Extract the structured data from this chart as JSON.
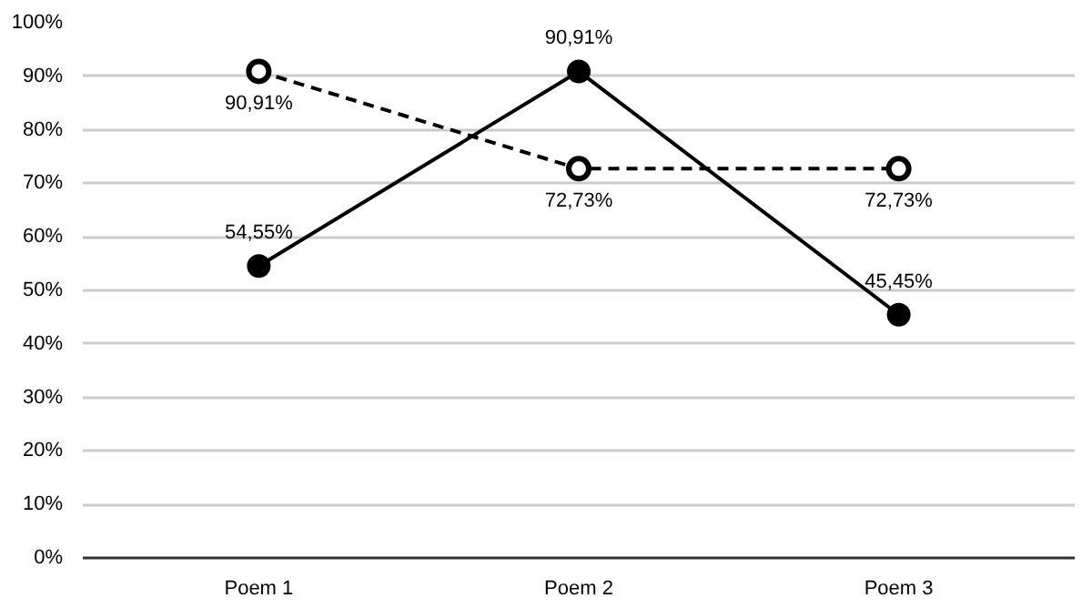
{
  "chart_data": {
    "type": "line",
    "categories": [
      "Poem 1",
      "Poem 2",
      "Poem 3"
    ],
    "series": [
      {
        "color": "#000000",
        "values": [
          54.55,
          90.91,
          45.45
        ],
        "value_labels": [
          "54,55%",
          "90,91%",
          "45,45%"
        ],
        "marker": "circle",
        "line_style": "solid"
      },
      {
        "color": "#000000",
        "values": [
          90.91,
          72.73,
          72.73
        ],
        "value_labels": [
          "90,91%",
          "72,73%",
          "72,73%"
        ],
        "marker": "circle",
        "line_style": "dashed"
      }
    ],
    "ylim": [
      0,
      100
    ],
    "yticks": [
      {
        "value": 0,
        "label": "0%"
      },
      {
        "value": 10,
        "label": "10%"
      },
      {
        "value": 20,
        "label": "20%"
      },
      {
        "value": 30,
        "label": "30%"
      },
      {
        "value": 40,
        "label": "40%"
      },
      {
        "value": 50,
        "label": "50%"
      },
      {
        "value": 60,
        "label": "60%"
      },
      {
        "value": 70,
        "label": "70%"
      },
      {
        "value": 80,
        "label": "80%"
      },
      {
        "value": 90,
        "label": "90%"
      },
      {
        "value": 100,
        "label": "100%"
      }
    ],
    "grid": "y"
  }
}
